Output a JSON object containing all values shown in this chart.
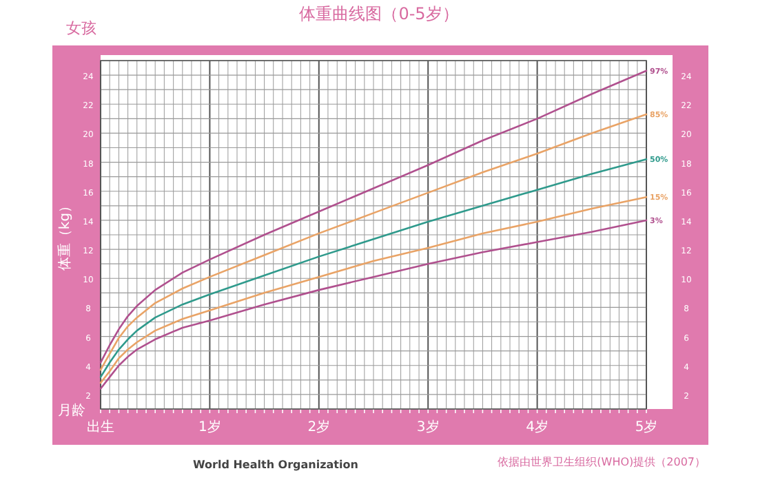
{
  "chart_data": {
    "type": "line",
    "title": "体重曲线图（0-5岁）",
    "subtitle": "女孩",
    "ylabel": "体重（kg）",
    "xlabel": "月龄",
    "annotations": [
      "World Health Organization",
      "依据由世界卫生组织(WHO)提供（2007）"
    ],
    "xlim": [
      0,
      5
    ],
    "ylim": [
      1,
      25
    ],
    "y2lim": [
      1,
      25
    ],
    "xticks": [
      {
        "value": 0,
        "label": "出生"
      },
      {
        "value": 0.083,
        "label": null
      },
      {
        "value": 0.167,
        "label": null
      },
      {
        "value": 0.25,
        "label": null
      },
      {
        "value": 0.333,
        "label": null
      },
      {
        "value": 0.417,
        "label": null
      },
      {
        "value": 0.5,
        "label": null
      },
      {
        "value": 0.583,
        "label": null
      },
      {
        "value": 0.667,
        "label": null
      },
      {
        "value": 0.75,
        "label": null
      },
      {
        "value": 0.833,
        "label": null
      },
      {
        "value": 0.917,
        "label": null
      },
      {
        "value": 1,
        "label": "1岁"
      },
      {
        "value": 1.083,
        "label": null
      },
      {
        "value": 1.167,
        "label": null
      },
      {
        "value": 1.25,
        "label": null
      },
      {
        "value": 1.333,
        "label": null
      },
      {
        "value": 1.417,
        "label": null
      },
      {
        "value": 1.5,
        "label": null
      },
      {
        "value": 1.583,
        "label": null
      },
      {
        "value": 1.667,
        "label": null
      },
      {
        "value": 1.75,
        "label": null
      },
      {
        "value": 1.833,
        "label": null
      },
      {
        "value": 1.917,
        "label": null
      },
      {
        "value": 2,
        "label": "2岁"
      },
      {
        "value": 2.083,
        "label": null
      },
      {
        "value": 2.167,
        "label": null
      },
      {
        "value": 2.25,
        "label": null
      },
      {
        "value": 2.333,
        "label": null
      },
      {
        "value": 2.417,
        "label": null
      },
      {
        "value": 2.5,
        "label": null
      },
      {
        "value": 2.583,
        "label": null
      },
      {
        "value": 2.667,
        "label": null
      },
      {
        "value": 2.75,
        "label": null
      },
      {
        "value": 2.833,
        "label": null
      },
      {
        "value": 2.917,
        "label": null
      },
      {
        "value": 3,
        "label": "3岁"
      },
      {
        "value": 3.083,
        "label": null
      },
      {
        "value": 3.167,
        "label": null
      },
      {
        "value": 3.25,
        "label": null
      },
      {
        "value": 3.333,
        "label": null
      },
      {
        "value": 3.417,
        "label": null
      },
      {
        "value": 3.5,
        "label": null
      },
      {
        "value": 3.583,
        "label": null
      },
      {
        "value": 3.667,
        "label": null
      },
      {
        "value": 3.75,
        "label": null
      },
      {
        "value": 3.833,
        "label": null
      },
      {
        "value": 3.917,
        "label": null
      },
      {
        "value": 4,
        "label": "4岁"
      },
      {
        "value": 4.083,
        "label": null
      },
      {
        "value": 4.167,
        "label": null
      },
      {
        "value": 4.25,
        "label": null
      },
      {
        "value": 4.333,
        "label": null
      },
      {
        "value": 4.417,
        "label": null
      },
      {
        "value": 4.5,
        "label": null
      },
      {
        "value": 4.583,
        "label": null
      },
      {
        "value": 4.667,
        "label": null
      },
      {
        "value": 4.75,
        "label": null
      },
      {
        "value": 4.833,
        "label": null
      },
      {
        "value": 4.917,
        "label": null
      },
      {
        "value": 5,
        "label": "5岁"
      }
    ],
    "yticks": [
      {
        "value": 1,
        "label": null
      },
      2,
      {
        "value": 3,
        "label": null
      },
      4,
      {
        "value": 5,
        "label": null
      },
      6,
      {
        "value": 7,
        "label": null
      },
      8,
      {
        "value": 9,
        "label": null
      },
      10,
      {
        "value": 11,
        "label": null
      },
      12,
      {
        "value": 13,
        "label": null
      },
      14,
      {
        "value": 15,
        "label": null
      },
      16,
      {
        "value": 17,
        "label": null
      },
      18,
      {
        "value": 19,
        "label": null
      },
      20,
      {
        "value": 21,
        "label": null
      },
      22,
      {
        "value": 23,
        "label": null
      },
      24,
      {
        "value": 25,
        "label": null
      }
    ],
    "y2ticks": [
      2,
      4,
      6,
      8,
      10,
      12,
      14,
      16,
      18,
      20,
      22,
      24
    ],
    "grid": true,
    "marker": "none",
    "line_style": "solid",
    "x": [
      0,
      0.083,
      0.167,
      0.25,
      0.333,
      0.5,
      0.75,
      1,
      1.5,
      2,
      2.5,
      3,
      3.5,
      4,
      4.5,
      5
    ],
    "series": [
      {
        "name": "97%",
        "color": "#b0508e",
        "values": [
          4.2,
          5.4,
          6.5,
          7.4,
          8.1,
          9.2,
          10.4,
          11.3,
          13.0,
          14.6,
          16.2,
          17.8,
          19.5,
          21.0,
          22.7,
          24.3
        ]
      },
      {
        "name": "85%",
        "color": "#e9a366",
        "values": [
          3.7,
          4.8,
          5.9,
          6.7,
          7.3,
          8.3,
          9.3,
          10.1,
          11.6,
          13.1,
          14.5,
          15.9,
          17.3,
          18.6,
          20.0,
          21.3
        ]
      },
      {
        "name": "50%",
        "color": "#2f9a8c",
        "values": [
          3.2,
          4.2,
          5.1,
          5.8,
          6.4,
          7.3,
          8.2,
          8.9,
          10.2,
          11.5,
          12.7,
          13.9,
          15.0,
          16.1,
          17.2,
          18.2
        ]
      },
      {
        "name": "15%",
        "color": "#e9a366",
        "values": [
          2.8,
          3.6,
          4.5,
          5.1,
          5.6,
          6.4,
          7.2,
          7.8,
          9.0,
          10.1,
          11.2,
          12.1,
          13.1,
          13.9,
          14.8,
          15.6
        ]
      },
      {
        "name": "3%",
        "color": "#b0508e",
        "values": [
          2.4,
          3.2,
          4.0,
          4.6,
          5.1,
          5.8,
          6.6,
          7.1,
          8.2,
          9.2,
          10.1,
          11.0,
          11.8,
          12.5,
          13.2,
          14.0
        ]
      }
    ]
  }
}
